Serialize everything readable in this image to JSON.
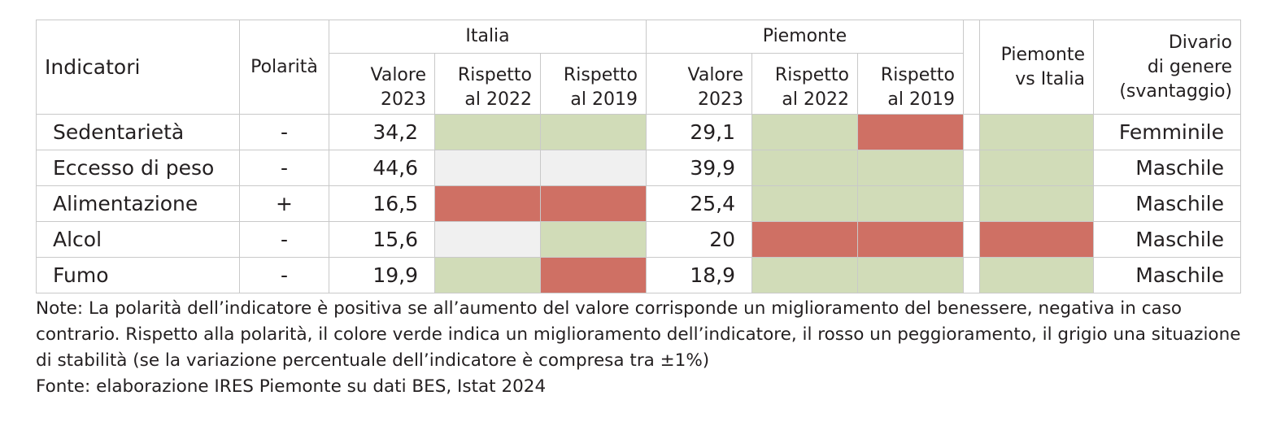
{
  "header": {
    "indicatori": "Indicatori",
    "polarita": "Polarità",
    "group_italia": "Italia",
    "group_piemonte": "Piemonte",
    "valore_line1": "Valore",
    "valore_line2": "2023",
    "rispetto_line1": "Rispetto",
    "rispetto2022_line2": "al 2022",
    "rispetto2019_line2": "al 2019",
    "pvi_line1": "Piemonte",
    "pvi_line2": "vs Italia",
    "divario_line1": "Divario",
    "divario_line2": "di genere",
    "divario_line3": "(svantaggio)"
  },
  "colors": {
    "green": "#d1dcb8",
    "red": "#cf7064",
    "grey": "#f0f0f0"
  },
  "rows": [
    {
      "name": "Sedentarietà",
      "polarity": "-",
      "italia_valore": "34,2",
      "italia_2022": "green",
      "italia_2019": "green",
      "piemonte_valore": "29,1",
      "piemonte_2022": "green",
      "piemonte_2019": "red",
      "piemonte_vs_italia": "green",
      "divario": "Femminile"
    },
    {
      "name": "Eccesso di peso",
      "polarity": "-",
      "italia_valore": "44,6",
      "italia_2022": "grey",
      "italia_2019": "grey",
      "piemonte_valore": "39,9",
      "piemonte_2022": "green",
      "piemonte_2019": "green",
      "piemonte_vs_italia": "green",
      "divario": "Maschile"
    },
    {
      "name": "Alimentazione",
      "polarity": "+",
      "italia_valore": "16,5",
      "italia_2022": "red",
      "italia_2019": "red",
      "piemonte_valore": "25,4",
      "piemonte_2022": "green",
      "piemonte_2019": "green",
      "piemonte_vs_italia": "green",
      "divario": "Maschile"
    },
    {
      "name": "Alcol",
      "polarity": "-",
      "italia_valore": "15,6",
      "italia_2022": "grey",
      "italia_2019": "green",
      "piemonte_valore": "20",
      "piemonte_2022": "red",
      "piemonte_2019": "red",
      "piemonte_vs_italia": "red",
      "divario": "Maschile"
    },
    {
      "name": "Fumo",
      "polarity": "-",
      "italia_valore": "19,9",
      "italia_2022": "green",
      "italia_2019": "red",
      "piemonte_valore": "18,9",
      "piemonte_2022": "green",
      "piemonte_2019": "green",
      "piemonte_vs_italia": "green",
      "divario": "Maschile"
    }
  ],
  "notes": {
    "note": "Note: La polarità dell’indicatore è positiva se all’aumento del valore corrisponde un miglioramento del benessere, negativa in caso contrario. Rispetto alla polarità, il colore verde indica un miglioramento dell’indicatore, il rosso un peggioramento, il grigio una situazione di stabilità (se la variazione percentuale dell’indicatore è compresa tra ±1%)",
    "source": "Fonte: elaborazione IRES Piemonte su dati BES, Istat 2024"
  }
}
